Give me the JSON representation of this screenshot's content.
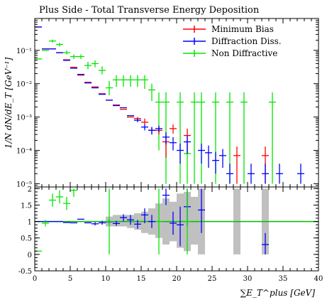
{
  "chart_data": {
    "type": "scatter",
    "title": "Plus Side - Total Transverse Energy Deposition",
    "xlabel": "∑E_T^plus [GeV]",
    "ylabel": "1/N dN/dE_T [GeV⁻¹]",
    "xlim": [
      0,
      40
    ],
    "ylim_main": [
      8e-06,
      0.9
    ],
    "yscale_main": "log",
    "ylim_ratio": [
      -0.5,
      2.05
    ],
    "x_ticks": [
      "0",
      "5",
      "10",
      "15",
      "20",
      "25",
      "30",
      "35",
      "40"
    ],
    "y_ticks_main": [
      "10⁻⁵",
      "10⁻⁴",
      "10⁻³",
      "10⁻²",
      "10⁻¹"
    ],
    "y_ticks_ratio": [
      "-0.5",
      "0",
      "0.5",
      "1",
      "1.5",
      "2"
    ],
    "legend_position": "top-right",
    "series": [
      {
        "name": "Minimum Bias",
        "color": "#ff0000",
        "points": [
          {
            "x": 0.5,
            "y": 0.5,
            "lo": 0.5,
            "hi": 0.5
          },
          {
            "x": 1.5,
            "y": 0.11,
            "lo": 0.11,
            "hi": 0.11
          },
          {
            "x": 2.5,
            "y": 0.11,
            "lo": 0.11,
            "hi": 0.11
          },
          {
            "x": 3.5,
            "y": 0.085,
            "lo": 0.085,
            "hi": 0.085
          },
          {
            "x": 4.5,
            "y": 0.052,
            "lo": 0.052,
            "hi": 0.052
          },
          {
            "x": 5.5,
            "y": 0.031,
            "lo": 0.031,
            "hi": 0.031
          },
          {
            "x": 6.5,
            "y": 0.018,
            "lo": 0.018,
            "hi": 0.018
          },
          {
            "x": 7.5,
            "y": 0.011,
            "lo": 0.011,
            "hi": 0.011
          },
          {
            "x": 8.5,
            "y": 0.008,
            "lo": 0.008,
            "hi": 0.008
          },
          {
            "x": 9.5,
            "y": 0.005,
            "lo": 0.005,
            "hi": 0.005
          },
          {
            "x": 10.5,
            "y": 0.0032,
            "lo": 0.0032,
            "hi": 0.0032
          },
          {
            "x": 11.5,
            "y": 0.0023,
            "lo": 0.0023,
            "hi": 0.0023
          },
          {
            "x": 12.5,
            "y": 0.0017,
            "lo": 0.0017,
            "hi": 0.0017
          },
          {
            "x": 13.5,
            "y": 0.001,
            "lo": 0.001,
            "hi": 0.001
          },
          {
            "x": 14.5,
            "y": 0.0009,
            "lo": 0.0008,
            "hi": 0.001
          },
          {
            "x": 15.5,
            "y": 0.0007,
            "lo": 0.0006,
            "hi": 0.0009
          },
          {
            "x": 16.5,
            "y": 0.0004,
            "lo": 0.0003,
            "hi": 0.0005
          },
          {
            "x": 17.5,
            "y": 0.0004,
            "lo": 0.0003,
            "hi": 0.0005
          },
          {
            "x": 18.5,
            "y": 0.00018,
            "lo": 6e-05,
            "hi": 0.0003
          },
          {
            "x": 19.5,
            "y": 0.00045,
            "lo": 0.00032,
            "hi": 0.0006
          },
          {
            "x": 21.5,
            "y": 0.00028,
            "lo": 8e-05,
            "hi": 0.00045
          },
          {
            "x": 28.5,
            "y": 7e-05,
            "lo": 1e-05,
            "hi": 0.00013
          },
          {
            "x": 32.5,
            "y": 7e-05,
            "lo": 1e-05,
            "hi": 0.00013
          }
        ]
      },
      {
        "name": "Diffraction Diss.",
        "color": "#0000ff",
        "points": [
          {
            "x": 0.5,
            "y": 0.5,
            "lo": 0.5,
            "hi": 0.5
          },
          {
            "x": 1.5,
            "y": 0.11,
            "lo": 0.11,
            "hi": 0.11
          },
          {
            "x": 2.5,
            "y": 0.11,
            "lo": 0.11,
            "hi": 0.11
          },
          {
            "x": 3.5,
            "y": 0.085,
            "lo": 0.085,
            "hi": 0.085
          },
          {
            "x": 4.5,
            "y": 0.05,
            "lo": 0.05,
            "hi": 0.05
          },
          {
            "x": 5.5,
            "y": 0.029,
            "lo": 0.029,
            "hi": 0.029
          },
          {
            "x": 6.5,
            "y": 0.019,
            "lo": 0.019,
            "hi": 0.019
          },
          {
            "x": 7.5,
            "y": 0.0105,
            "lo": 0.0105,
            "hi": 0.0105
          },
          {
            "x": 8.5,
            "y": 0.0075,
            "lo": 0.0075,
            "hi": 0.0075
          },
          {
            "x": 9.5,
            "y": 0.0048,
            "lo": 0.0048,
            "hi": 0.0048
          },
          {
            "x": 10.5,
            "y": 0.0032,
            "lo": 0.0032,
            "hi": 0.0032
          },
          {
            "x": 11.5,
            "y": 0.0022,
            "lo": 0.0022,
            "hi": 0.0022
          },
          {
            "x": 12.5,
            "y": 0.0019,
            "lo": 0.0019,
            "hi": 0.0019
          },
          {
            "x": 13.5,
            "y": 0.0011,
            "lo": 0.0011,
            "hi": 0.0011
          },
          {
            "x": 14.5,
            "y": 0.0008,
            "lo": 0.0007,
            "hi": 0.0009
          },
          {
            "x": 15.5,
            "y": 0.0005,
            "lo": 0.0004,
            "hi": 0.0006
          },
          {
            "x": 16.5,
            "y": 0.0004,
            "lo": 0.0003,
            "hi": 0.0005
          },
          {
            "x": 17.5,
            "y": 0.00045,
            "lo": 0.00035,
            "hi": 0.00055
          },
          {
            "x": 18.5,
            "y": 0.00025,
            "lo": 0.00015,
            "hi": 0.00035
          },
          {
            "x": 19.5,
            "y": 0.00017,
            "lo": 0.0001,
            "hi": 0.00025
          },
          {
            "x": 20.5,
            "y": 0.0001,
            "lo": 4e-05,
            "hi": 0.00016
          },
          {
            "x": 21.5,
            "y": 0.00018,
            "lo": 8e-05,
            "hi": 0.00028
          },
          {
            "x": 23.5,
            "y": 0.0001,
            "lo": 4e-05,
            "hi": 0.00016
          },
          {
            "x": 24.5,
            "y": 8.5e-05,
            "lo": 3e-05,
            "hi": 0.00014
          },
          {
            "x": 25.5,
            "y": 5e-05,
            "lo": 2e-05,
            "hi": 9e-05
          },
          {
            "x": 26.5,
            "y": 7e-05,
            "lo": 3e-05,
            "hi": 0.00011
          },
          {
            "x": 27.5,
            "y": 2e-05,
            "lo": 1e-05,
            "hi": 4e-05
          },
          {
            "x": 30.5,
            "y": 2e-05,
            "lo": 1e-05,
            "hi": 4e-05
          },
          {
            "x": 32.5,
            "y": 2e-05,
            "lo": 1e-05,
            "hi": 4e-05
          },
          {
            "x": 34.5,
            "y": 2e-05,
            "lo": 1e-05,
            "hi": 4e-05
          },
          {
            "x": 37.5,
            "y": 2e-05,
            "lo": 1e-05,
            "hi": 4e-05
          }
        ]
      },
      {
        "name": "Non Diffractive",
        "color": "#00e600",
        "points": [
          {
            "x": 0.5,
            "y": 0.055,
            "lo": 0.055,
            "hi": 0.055
          },
          {
            "x": 1.5,
            "y": 0.1,
            "lo": 0.1,
            "hi": 0.1
          },
          {
            "x": 2.5,
            "y": 0.19,
            "lo": 0.17,
            "hi": 0.21
          },
          {
            "x": 3.5,
            "y": 0.15,
            "lo": 0.13,
            "hi": 0.17
          },
          {
            "x": 4.5,
            "y": 0.085,
            "lo": 0.075,
            "hi": 0.1
          },
          {
            "x": 5.5,
            "y": 0.065,
            "lo": 0.055,
            "hi": 0.075
          },
          {
            "x": 6.5,
            "y": 0.065,
            "lo": 0.055,
            "hi": 0.075
          },
          {
            "x": 7.5,
            "y": 0.035,
            "lo": 0.027,
            "hi": 0.045
          },
          {
            "x": 8.5,
            "y": 0.04,
            "lo": 0.031,
            "hi": 0.05
          },
          {
            "x": 9.5,
            "y": 0.025,
            "lo": 0.019,
            "hi": 0.033
          },
          {
            "x": 10.5,
            "y": 0.0075,
            "lo": 0.0045,
            "hi": 0.012
          },
          {
            "x": 11.5,
            "y": 0.013,
            "lo": 0.008,
            "hi": 0.018
          },
          {
            "x": 12.5,
            "y": 0.013,
            "lo": 0.008,
            "hi": 0.018
          },
          {
            "x": 13.5,
            "y": 0.013,
            "lo": 0.008,
            "hi": 0.018
          },
          {
            "x": 14.5,
            "y": 0.013,
            "lo": 0.008,
            "hi": 0.018
          },
          {
            "x": 15.5,
            "y": 0.013,
            "lo": 0.007,
            "hi": 0.018
          },
          {
            "x": 16.5,
            "y": 0.0065,
            "lo": 0.003,
            "hi": 0.01
          },
          {
            "x": 17.5,
            "y": 0.0028,
            "lo": 0.0001,
            "hi": 0.0055
          },
          {
            "x": 18.5,
            "y": 0.0028,
            "lo": 1e-05,
            "hi": 0.0055
          },
          {
            "x": 20.5,
            "y": 0.0028,
            "lo": 1e-05,
            "hi": 0.0055
          },
          {
            "x": 21.5,
            "y": 8e-05,
            "lo": 1e-05,
            "hi": 0.00015
          },
          {
            "x": 22.5,
            "y": 0.0028,
            "lo": 1e-05,
            "hi": 0.0055
          },
          {
            "x": 23.5,
            "y": 0.0028,
            "lo": 1e-05,
            "hi": 0.0055
          },
          {
            "x": 25.5,
            "y": 0.0028,
            "lo": 1e-05,
            "hi": 0.0055
          },
          {
            "x": 27.5,
            "y": 0.0028,
            "lo": 1e-05,
            "hi": 0.0055
          },
          {
            "x": 29.5,
            "y": 0.0028,
            "lo": 1e-05,
            "hi": 0.0055
          },
          {
            "x": 33.5,
            "y": 0.0028,
            "lo": 1e-05,
            "hi": 0.0055
          }
        ]
      }
    ],
    "ratio_band": [
      {
        "x0": 10,
        "x1": 11,
        "lo": 0.85,
        "hi": 1.15
      },
      {
        "x0": 11,
        "x1": 12,
        "lo": 0.85,
        "hi": 1.2
      },
      {
        "x0": 12,
        "x1": 13,
        "lo": 0.85,
        "hi": 1.2
      },
      {
        "x0": 13,
        "x1": 14,
        "lo": 0.8,
        "hi": 1.2
      },
      {
        "x0": 14,
        "x1": 15,
        "lo": 0.75,
        "hi": 1.25
      },
      {
        "x0": 15,
        "x1": 16,
        "lo": 0.65,
        "hi": 1.3
      },
      {
        "x0": 16,
        "x1": 17,
        "lo": 0.6,
        "hi": 1.4
      },
      {
        "x0": 17,
        "x1": 18,
        "lo": 0.5,
        "hi": 1.55
      },
      {
        "x0": 18,
        "x1": 19,
        "lo": 0.3,
        "hi": 1.7
      },
      {
        "x0": 19,
        "x1": 20,
        "lo": 0.4,
        "hi": 1.6
      },
      {
        "x0": 20,
        "x1": 21,
        "lo": 0.2,
        "hi": 1.85
      },
      {
        "x0": 21,
        "x1": 22,
        "lo": 0.1,
        "hi": 1.9
      },
      {
        "x0": 22,
        "x1": 23,
        "lo": 0.3,
        "hi": 1.75
      },
      {
        "x0": 23,
        "x1": 24,
        "lo": 0.0,
        "hi": 2.0
      },
      {
        "x0": 28,
        "x1": 29,
        "lo": 0.0,
        "hi": 2.0
      },
      {
        "x0": 32,
        "x1": 33,
        "lo": 0.0,
        "hi": 2.0
      }
    ],
    "ratio_points": [
      {
        "name": "Diffraction Diss.",
        "color": "#0000ff",
        "points": [
          {
            "x": 0.5,
            "y": 1.0,
            "lo": 1.0,
            "hi": 1.0
          },
          {
            "x": 1.5,
            "y": 1.0,
            "lo": 1.0,
            "hi": 1.0
          },
          {
            "x": 2.5,
            "y": 1.0,
            "lo": 1.0,
            "hi": 1.0
          },
          {
            "x": 3.5,
            "y": 1.0,
            "lo": 1.0,
            "hi": 1.0
          },
          {
            "x": 4.5,
            "y": 0.97,
            "lo": 0.97,
            "hi": 0.97
          },
          {
            "x": 5.5,
            "y": 0.96,
            "lo": 0.96,
            "hi": 0.96
          },
          {
            "x": 6.5,
            "y": 1.07,
            "lo": 1.07,
            "hi": 1.07
          },
          {
            "x": 7.5,
            "y": 0.96,
            "lo": 0.96,
            "hi": 0.96
          },
          {
            "x": 8.5,
            "y": 0.93,
            "lo": 0.88,
            "hi": 0.98
          },
          {
            "x": 9.5,
            "y": 0.96,
            "lo": 0.9,
            "hi": 1.02
          },
          {
            "x": 10.5,
            "y": 0.99,
            "lo": 0.92,
            "hi": 1.06
          },
          {
            "x": 11.5,
            "y": 0.94,
            "lo": 0.87,
            "hi": 1.02
          },
          {
            "x": 12.5,
            "y": 1.12,
            "lo": 1.0,
            "hi": 1.22
          },
          {
            "x": 13.5,
            "y": 1.05,
            "lo": 0.9,
            "hi": 1.2
          },
          {
            "x": 14.5,
            "y": 0.92,
            "lo": 0.78,
            "hi": 1.05
          },
          {
            "x": 15.5,
            "y": 1.2,
            "lo": 0.95,
            "hi": 1.4
          },
          {
            "x": 16.5,
            "y": 1.0,
            "lo": 0.8,
            "hi": 1.2
          },
          {
            "x": 18.5,
            "y": 1.8,
            "lo": 1.5,
            "hi": 2.0
          },
          {
            "x": 19.5,
            "y": 0.95,
            "lo": 0.6,
            "hi": 1.3
          },
          {
            "x": 20.5,
            "y": 0.9,
            "lo": 0.25,
            "hi": 1.45
          },
          {
            "x": 21.5,
            "y": 1.45,
            "lo": 0.85,
            "hi": 2.0
          },
          {
            "x": 23.5,
            "y": 1.35,
            "lo": 0.65,
            "hi": 2.0
          },
          {
            "x": 32.5,
            "y": 0.3,
            "lo": 0.0,
            "hi": 0.65
          }
        ]
      },
      {
        "name": "Non Diffractive",
        "color": "#00e600",
        "points": [
          {
            "x": 0.5,
            "y": 0.1,
            "lo": 0.1,
            "hi": 0.1
          },
          {
            "x": 1.5,
            "y": 0.95,
            "lo": 0.85,
            "hi": 1.05
          },
          {
            "x": 2.5,
            "y": 1.65,
            "lo": 1.45,
            "hi": 1.85
          },
          {
            "x": 3.5,
            "y": 1.75,
            "lo": 1.55,
            "hi": 1.95
          },
          {
            "x": 4.5,
            "y": 1.55,
            "lo": 1.35,
            "hi": 1.75
          },
          {
            "x": 5.5,
            "y": 1.95,
            "lo": 1.75,
            "hi": 2.0
          },
          {
            "x": 10.5,
            "y": 1.0,
            "lo": 0.0,
            "hi": 2.0
          },
          {
            "x": 17.5,
            "y": 1.0,
            "lo": 0.0,
            "hi": 2.0
          },
          {
            "x": 21.5,
            "y": 1.0,
            "lo": 0.0,
            "hi": 2.0
          }
        ]
      }
    ]
  }
}
